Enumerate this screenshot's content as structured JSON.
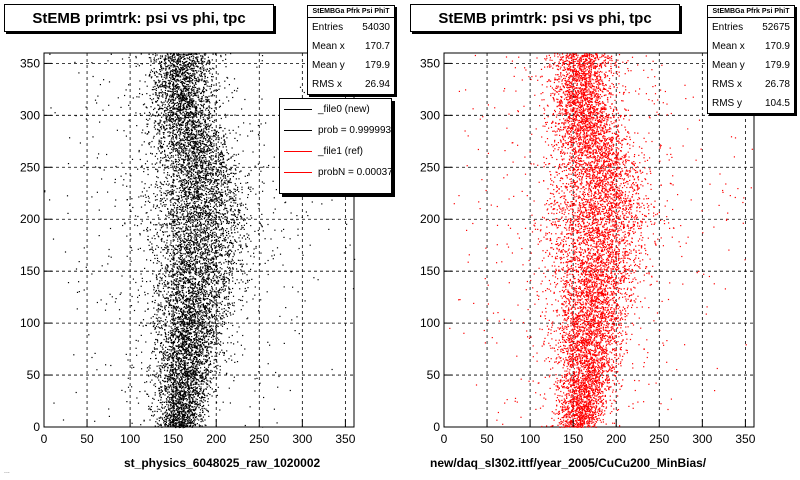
{
  "footer_text": "...",
  "chart_data": [
    {
      "type": "scatter",
      "title": "StEMB primtrk: psi vs phi, tpc",
      "xlabel": "st_physics_6048025_raw_1020002",
      "ylabel": "",
      "xlim": [
        0,
        360
      ],
      "ylim": [
        0,
        360
      ],
      "xticks": [
        0,
        50,
        100,
        150,
        200,
        250,
        300,
        350
      ],
      "yticks": [
        0,
        50,
        100,
        150,
        200,
        250,
        300,
        350
      ],
      "grid": true,
      "marker_color": "#000000",
      "stats": {
        "name": "StEMBGa Pfrk Psi PhiT",
        "entries_label": "Entries",
        "entries": "54030",
        "mean_x_label": "Mean x",
        "mean_x": "170.7",
        "mean_y_label": "Mean y",
        "mean_y": "179.9",
        "rms_x_label": "RMS x",
        "rms_x": "26.94"
      },
      "legend": {
        "placement": "top-right",
        "entries": [
          {
            "label": "_file0 (new)",
            "color": "#000000"
          },
          {
            "label": "prob = 0.999993",
            "color": "#000000"
          },
          {
            "label": "_file1 (ref)",
            "color": "#ff0000"
          },
          {
            "label": "probN = 0.00037",
            "color": "#ff0000"
          }
        ]
      },
      "density_profile": [
        {
          "y": 0,
          "x_center": 155,
          "x_width": 14
        },
        {
          "y": 20,
          "x_center": 160,
          "x_width": 16
        },
        {
          "y": 50,
          "x_center": 165,
          "x_width": 18
        },
        {
          "y": 90,
          "x_center": 168,
          "x_width": 22
        },
        {
          "y": 130,
          "x_center": 172,
          "x_width": 26
        },
        {
          "y": 170,
          "x_center": 178,
          "x_width": 30
        },
        {
          "y": 210,
          "x_center": 182,
          "x_width": 32
        },
        {
          "y": 250,
          "x_center": 178,
          "x_width": 26
        },
        {
          "y": 290,
          "x_center": 165,
          "x_width": 22
        },
        {
          "y": 330,
          "x_center": 160,
          "x_width": 20
        },
        {
          "y": 360,
          "x_center": 158,
          "x_width": 20
        }
      ]
    },
    {
      "type": "scatter",
      "title": "StEMB primtrk: psi vs phi, tpc",
      "xlabel": "new/daq_sl302.ittf/year_2005/CuCu200_MinBias/",
      "ylabel": "",
      "xlim": [
        0,
        360
      ],
      "ylim": [
        0,
        360
      ],
      "xticks": [
        0,
        50,
        100,
        150,
        200,
        250,
        300,
        350
      ],
      "yticks": [
        0,
        50,
        100,
        150,
        200,
        250,
        300,
        350
      ],
      "grid": true,
      "marker_color": "#ff0000",
      "stats": {
        "name": "StEMBGa Pfrk Psi PhiT",
        "entries_label": "Entries",
        "entries": "52675",
        "mean_x_label": "Mean x",
        "mean_x": "170.9",
        "mean_y_label": "Mean y",
        "mean_y": "179.9",
        "rms_x_label": "RMS x",
        "rms_x": "26.78",
        "rms_y_label": "RMS y",
        "rms_y": "104.5"
      },
      "density_profile": [
        {
          "y": 0,
          "x_center": 155,
          "x_width": 14
        },
        {
          "y": 20,
          "x_center": 160,
          "x_width": 16
        },
        {
          "y": 50,
          "x_center": 165,
          "x_width": 18
        },
        {
          "y": 90,
          "x_center": 168,
          "x_width": 22
        },
        {
          "y": 130,
          "x_center": 172,
          "x_width": 26
        },
        {
          "y": 170,
          "x_center": 178,
          "x_width": 30
        },
        {
          "y": 210,
          "x_center": 182,
          "x_width": 32
        },
        {
          "y": 250,
          "x_center": 178,
          "x_width": 26
        },
        {
          "y": 290,
          "x_center": 165,
          "x_width": 22
        },
        {
          "y": 330,
          "x_center": 160,
          "x_width": 20
        },
        {
          "y": 360,
          "x_center": 158,
          "x_width": 20
        }
      ]
    }
  ]
}
